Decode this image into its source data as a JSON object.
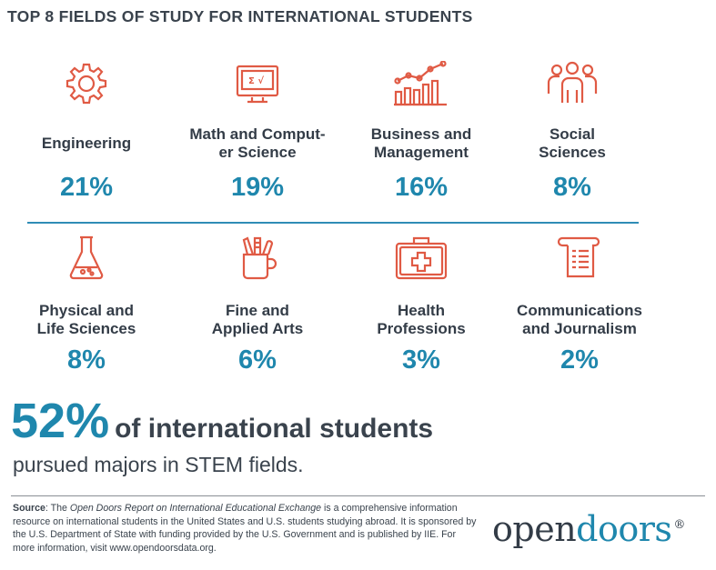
{
  "title": "TOP 8 FIELDS OF STUDY FOR INTERNATIONAL STUDENTS",
  "colors": {
    "accent": "#1f87ad",
    "icon": "#e05a44",
    "text": "#333c47"
  },
  "chart_data": {
    "type": "table",
    "title": "TOP 8 FIELDS OF STUDY FOR INTERNATIONAL STUDENTS",
    "unit": "%",
    "categories": [
      "Engineering",
      "Math and Comput-er Science",
      "Business and Management",
      "Social Sciences",
      "Physical and Life Sciences",
      "Fine and Applied Arts",
      "Health Professions",
      "Communications and Journalism"
    ],
    "values": [
      21,
      19,
      16,
      8,
      8,
      6,
      3,
      2
    ],
    "items": [
      {
        "label": "Engineering",
        "percent": "21%",
        "icon": "gear-icon"
      },
      {
        "label": "Math and Comput-\ner Science",
        "percent": "19%",
        "icon": "computer-math-icon"
      },
      {
        "label": "Business and\nManagement",
        "percent": "16%",
        "icon": "bar-line-chart-icon"
      },
      {
        "label": "Social\nSciences",
        "percent": "8%",
        "icon": "people-group-icon"
      },
      {
        "label": "Physical and\nLife Sciences",
        "percent": "8%",
        "icon": "flask-icon"
      },
      {
        "label": "Fine and\nApplied Arts",
        "percent": "6%",
        "icon": "pencil-cup-icon"
      },
      {
        "label": "Health\nProfessions",
        "percent": "3%",
        "icon": "medical-kit-icon"
      },
      {
        "label": "Communications\nand Journalism",
        "percent": "2%",
        "icon": "scroll-document-icon"
      }
    ]
  },
  "stem": {
    "percent": "52%",
    "headline": "of international students",
    "subline": "pursued majors in STEM fields."
  },
  "footer": {
    "source_label": "Source",
    "source_pre": ": The ",
    "source_italic": "Open Doors Report on International Educational Exchange",
    "source_post": " is a comprehensive information resource on international students in the United States and U.S. students studying abroad. It is sponsored by the U.S. Department of State with funding provided by the U.S. Government and is published by IIE. For more information, visit www.opendoorsdata.org."
  },
  "logo": {
    "part1": "open",
    "part2": "doors",
    "mark": "®"
  }
}
